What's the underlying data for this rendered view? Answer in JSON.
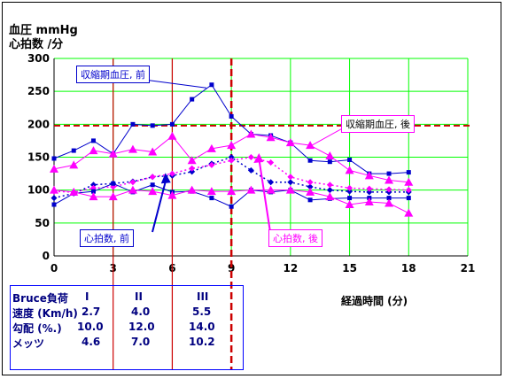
{
  "header": {
    "ylabel_line1": "血圧 mmHg",
    "ylabel_line2": "心拍数 /分"
  },
  "xlabel": "経過時間 (分)",
  "bruce_table": {
    "rows": [
      {
        "label": "Bruce負荷",
        "c1": "I",
        "c2": "II",
        "c3": "III"
      },
      {
        "label": "速度 (Km/h)",
        "c1": "2.7",
        "c2": "4.0",
        "c3": "5.5"
      },
      {
        "label": "勾配 (%.)",
        "c1": "10.0",
        "c2": "12.0",
        "c3": "14.0"
      },
      {
        "label": "メッツ",
        "c1": "4.6",
        "c2": "7.0",
        "c3": "10.2"
      }
    ]
  },
  "callouts": {
    "sbp_before": "収縮期血圧, 前",
    "sbp_after": "収縮期血圧, 後",
    "hr_before": "心拍数, 前",
    "hr_after": "心拍数, 後"
  },
  "colors": {
    "grid": "#00ff00",
    "stage_line": "#cc0000",
    "reference_line": "#cc0000",
    "before": "#0000cc",
    "after": "#ff00ff",
    "table_border": "#0000ff"
  },
  "chart_data": {
    "type": "line",
    "xlim": [
      0,
      21
    ],
    "ylim": [
      0,
      300
    ],
    "xticks": [
      0,
      3,
      6,
      9,
      12,
      15,
      18,
      21
    ],
    "yticks": [
      0,
      50,
      100,
      150,
      200,
      250,
      300
    ],
    "grid": true,
    "stage_boundaries": [
      3,
      6,
      9
    ],
    "reference_y": 198,
    "series": [
      {
        "key": "sbp_before",
        "style": "solid",
        "marker": "square",
        "color": "before",
        "x": [
          0,
          1,
          2,
          3,
          4,
          5,
          6,
          7,
          8,
          9,
          10,
          11,
          12,
          13,
          14,
          15,
          16,
          17,
          18
        ],
        "values": [
          148,
          160,
          175,
          155,
          200,
          198,
          200,
          238,
          260,
          212,
          185,
          183,
          172,
          145,
          143,
          146,
          125,
          125,
          127
        ]
      },
      {
        "key": "sbp_after",
        "style": "solid",
        "marker": "triangle",
        "color": "after",
        "x": [
          0,
          1,
          2,
          3,
          4,
          5,
          6,
          7,
          8,
          9,
          10,
          11,
          12,
          13,
          14,
          15,
          16,
          17,
          18
        ],
        "values": [
          132,
          138,
          160,
          155,
          162,
          158,
          182,
          145,
          163,
          168,
          185,
          180,
          172,
          168,
          152,
          130,
          122,
          115,
          112
        ]
      },
      {
        "key": "hr_before",
        "style": "dotted",
        "marker": "diamond",
        "color": "before",
        "x": [
          0,
          1,
          2,
          3,
          4,
          5,
          6,
          7,
          8,
          9,
          10,
          11,
          12,
          13,
          14,
          15,
          16,
          17,
          18
        ],
        "values": [
          88,
          95,
          108,
          110,
          113,
          120,
          122,
          128,
          140,
          150,
          130,
          112,
          112,
          105,
          100,
          98,
          97,
          97,
          97
        ]
      },
      {
        "key": "hr_after",
        "style": "dotted",
        "marker": "diamond",
        "color": "after",
        "x": [
          0,
          1,
          2,
          3,
          4,
          5,
          6,
          7,
          8,
          9,
          10,
          11,
          12,
          13,
          14,
          15,
          16,
          17,
          18
        ],
        "values": [
          98,
          97,
          103,
          105,
          112,
          120,
          125,
          133,
          138,
          145,
          150,
          142,
          120,
          112,
          108,
          103,
          102,
          101,
          100
        ]
      },
      {
        "key": "dbp_before",
        "style": "solid",
        "marker": "square",
        "color": "before",
        "x": [
          0,
          1,
          2,
          3,
          4,
          5,
          6,
          7,
          8,
          9,
          10,
          11,
          12,
          13,
          14,
          15,
          16,
          17,
          18
        ],
        "values": [
          78,
          95,
          98,
          110,
          97,
          108,
          97,
          98,
          88,
          75,
          100,
          97,
          100,
          85,
          87,
          88,
          88,
          88,
          88
        ]
      },
      {
        "key": "dbp_after",
        "style": "solid",
        "marker": "triangle",
        "color": "after",
        "x": [
          0,
          1,
          2,
          3,
          4,
          5,
          6,
          7,
          8,
          9,
          10,
          11,
          12,
          13,
          14,
          15,
          16,
          17,
          18
        ],
        "values": [
          100,
          97,
          90,
          90,
          100,
          98,
          92,
          100,
          98,
          98,
          100,
          100,
          100,
          97,
          90,
          78,
          82,
          80,
          65
        ]
      }
    ]
  }
}
